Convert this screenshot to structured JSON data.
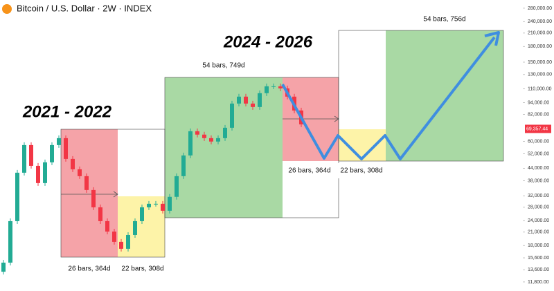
{
  "chart_data": {
    "type": "candlestick",
    "title": "Bitcoin / U.S. Dollar · 2W · INDEX",
    "annotations": [
      "2021 - 2022",
      "2024 - 2026",
      "26 bars, 364d",
      "22 bars, 308d",
      "54 bars, 749d",
      "26 bars, 364d",
      "22 bars, 308d",
      "54 bars, 756d"
    ],
    "values": [
      14760,
      23850,
      41770,
      57500,
      45220,
      37050,
      47100,
      57500,
      62300,
      49000,
      43450,
      40130,
      34200,
      27990,
      23850,
      21140,
      18770,
      17330,
      20320,
      23850,
      27990,
      29150,
      29150,
      26900,
      31600,
      40130,
      51000,
      67500,
      64900,
      62300,
      59900,
      62300,
      70250,
      92950,
      100700,
      92950,
      89300,
      104800,
      113500,
      113500,
      110800,
      100700,
      85800,
      73100
    ],
    "up_color": "#22ab94",
    "down_color": "#f23645",
    "log_scale": true,
    "ylim": [
      10630,
      308000
    ],
    "yticks": [
      {
        "value": 280000,
        "label": "280,000.00"
      },
      {
        "value": 240000,
        "label": "240,000.00"
      },
      {
        "value": 210000,
        "label": "210,000.00"
      },
      {
        "value": 180000,
        "label": "180,000.00"
      },
      {
        "value": 150000,
        "label": "150,000.00"
      },
      {
        "value": 130000,
        "label": "130,000.00"
      },
      {
        "value": 110000,
        "label": "110,000.00"
      },
      {
        "value": 94000,
        "label": "94,000.00"
      },
      {
        "value": 82000,
        "label": "82,000.00"
      },
      {
        "value": 60000,
        "label": "60,000.00"
      },
      {
        "value": 52000,
        "label": "52,000.00"
      },
      {
        "value": 44000,
        "label": "44,000.00"
      },
      {
        "value": 38000,
        "label": "38,000.00"
      },
      {
        "value": 32000,
        "label": "32,000.00"
      },
      {
        "value": 28000,
        "label": "28,000.00"
      },
      {
        "value": 24000,
        "label": "24,000.00"
      },
      {
        "value": 21000,
        "label": "21,000.00"
      },
      {
        "value": 18000,
        "label": "18,000.00"
      },
      {
        "value": 15600,
        "label": "15,600.00"
      },
      {
        "value": 13600,
        "label": "13,600.00"
      },
      {
        "value": 11800,
        "label": "11,800.00"
      }
    ],
    "last_price": {
      "value": 69357.44,
      "label": "69,357.44"
    }
  }
}
